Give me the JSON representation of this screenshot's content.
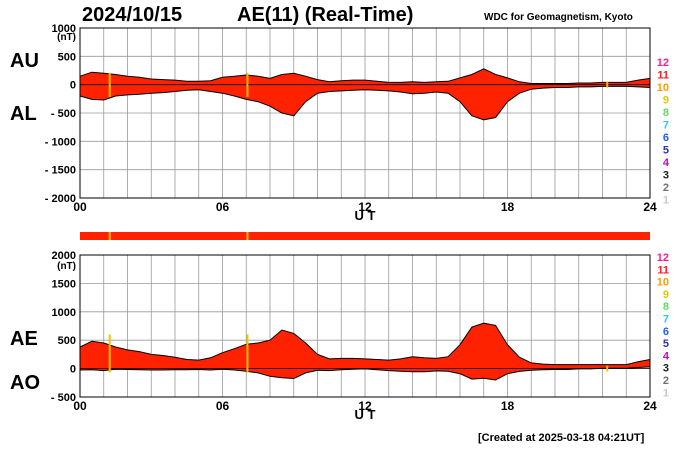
{
  "header": {
    "date": "2024/10/15",
    "title": "AE(11) (Real-Time)",
    "source": "WDC for Geomagnetism, Kyoto"
  },
  "footer": {
    "created": "[Created at 2025-03-18 04:21UT]"
  },
  "colors": {
    "fill": "#ff2200",
    "outline": "#000000",
    "grid": "#9a9a9a",
    "stations_bar": "#ff2200",
    "gap_marker": "#f5c000"
  },
  "chart_data": [
    {
      "type": "area",
      "name": "AU/AL panel",
      "side_labels": [
        "AU",
        "AL"
      ],
      "xlabel": "U T",
      "unit_label": "(nT)",
      "xlim": [
        0,
        24
      ],
      "x_ticks": [
        0,
        6,
        12,
        18,
        24
      ],
      "x_tick_labels": [
        "00",
        "06",
        "12",
        "18",
        "24"
      ],
      "ylim": [
        -2000,
        1000
      ],
      "y_ticks": [
        1000,
        500,
        0,
        -500,
        -1000,
        -1500,
        -2000
      ],
      "y_tick_labels": [
        "1000",
        "500",
        "0",
        "- 500",
        "- 1000",
        "- 1500",
        "- 2000"
      ],
      "grid": true,
      "x": [
        0,
        0.5,
        1,
        1.5,
        2,
        2.5,
        3,
        3.5,
        4,
        4.5,
        5,
        5.5,
        6,
        6.5,
        7,
        7.5,
        8,
        8.5,
        9,
        9.5,
        10,
        10.5,
        11,
        11.5,
        12,
        12.5,
        13,
        13.5,
        14,
        14.5,
        15,
        15.5,
        16,
        16.5,
        17,
        17.5,
        18,
        18.5,
        19,
        19.5,
        20,
        20.5,
        21,
        21.5,
        22,
        22.5,
        23,
        23.5,
        24
      ],
      "series": [
        {
          "name": "AU",
          "values": [
            150,
            220,
            200,
            180,
            150,
            130,
            100,
            90,
            80,
            60,
            60,
            70,
            130,
            150,
            170,
            150,
            110,
            180,
            200,
            150,
            90,
            50,
            70,
            80,
            80,
            60,
            40,
            40,
            50,
            40,
            50,
            60,
            120,
            180,
            280,
            180,
            120,
            50,
            20,
            20,
            20,
            20,
            30,
            30,
            40,
            40,
            40,
            80,
            110
          ]
        },
        {
          "name": "AL",
          "values": [
            -200,
            -260,
            -270,
            -200,
            -180,
            -170,
            -150,
            -140,
            -120,
            -100,
            -90,
            -120,
            -150,
            -200,
            -260,
            -300,
            -380,
            -500,
            -550,
            -300,
            -150,
            -120,
            -110,
            -100,
            -90,
            -100,
            -110,
            -130,
            -160,
            -150,
            -130,
            -150,
            -300,
            -550,
            -620,
            -580,
            -300,
            -150,
            -80,
            -60,
            -50,
            -50,
            -40,
            -40,
            -30,
            -30,
            -30,
            -40,
            -50
          ]
        }
      ],
      "gaps_ut": [
        1.25,
        7.05
      ],
      "minor_gaps_ut": [
        22.2
      ],
      "legend_hours": [
        "12",
        "11",
        "10",
        "9",
        "8",
        "7",
        "6",
        "5",
        "4",
        "3",
        "2",
        "1"
      ],
      "legend_colors": [
        "#ff1f8f",
        "#ff1f1f",
        "#ff9a00",
        "#d0d000",
        "#60e060",
        "#22d0e0",
        "#1e60ff",
        "#3030b0",
        "#d000d0",
        "#202020",
        "#707070",
        "#c8c8c8"
      ]
    },
    {
      "type": "area",
      "name": "AE/AO panel",
      "side_labels": [
        "AE",
        "AO"
      ],
      "xlabel": "U T",
      "unit_label": "(nT)",
      "xlim": [
        0,
        24
      ],
      "x_ticks": [
        0,
        6,
        12,
        18,
        24
      ],
      "x_tick_labels": [
        "00",
        "06",
        "12",
        "18",
        "24"
      ],
      "ylim": [
        -500,
        2000
      ],
      "y_ticks": [
        2000,
        1500,
        1000,
        500,
        0,
        -500
      ],
      "y_tick_labels": [
        "2000",
        "1500",
        "1000",
        "500",
        "0",
        "- 500"
      ],
      "grid": true,
      "x": [
        0,
        0.5,
        1,
        1.5,
        2,
        2.5,
        3,
        3.5,
        4,
        4.5,
        5,
        5.5,
        6,
        6.5,
        7,
        7.5,
        8,
        8.5,
        9,
        9.5,
        10,
        10.5,
        11,
        11.5,
        12,
        12.5,
        13,
        13.5,
        14,
        14.5,
        15,
        15.5,
        16,
        16.5,
        17,
        17.5,
        18,
        18.5,
        19,
        19.5,
        20,
        20.5,
        21,
        21.5,
        22,
        22.5,
        23,
        23.5,
        24
      ],
      "series": [
        {
          "name": "AE",
          "values": [
            380,
            480,
            450,
            380,
            330,
            300,
            250,
            230,
            200,
            160,
            150,
            190,
            280,
            350,
            430,
            450,
            500,
            680,
            620,
            450,
            250,
            170,
            180,
            180,
            170,
            160,
            150,
            170,
            210,
            190,
            180,
            210,
            420,
            730,
            800,
            760,
            420,
            200,
            100,
            80,
            70,
            70,
            70,
            70,
            70,
            70,
            70,
            120,
            160
          ]
        },
        {
          "name": "AO",
          "values": [
            -25,
            -20,
            -35,
            -10,
            -15,
            -20,
            -25,
            -25,
            -20,
            -20,
            -15,
            -25,
            -10,
            -25,
            -45,
            -75,
            -135,
            -160,
            -175,
            -75,
            -30,
            -35,
            -20,
            -10,
            -5,
            -20,
            -35,
            -45,
            -55,
            -55,
            -40,
            -45,
            -90,
            -185,
            -170,
            -200,
            -90,
            -50,
            -30,
            -20,
            -15,
            -15,
            -5,
            -5,
            5,
            5,
            5,
            20,
            30
          ]
        }
      ],
      "gaps_ut": [
        1.25,
        7.05
      ],
      "minor_gaps_ut": [
        22.2
      ],
      "legend_hours": [
        "12",
        "11",
        "10",
        "9",
        "8",
        "7",
        "6",
        "5",
        "4",
        "3",
        "2",
        "1"
      ],
      "legend_colors": [
        "#ff1f8f",
        "#ff1f1f",
        "#ff9a00",
        "#d0d000",
        "#60e060",
        "#22d0e0",
        "#1e60ff",
        "#3030b0",
        "#d000d0",
        "#202020",
        "#707070",
        "#c8c8c8"
      ]
    }
  ]
}
